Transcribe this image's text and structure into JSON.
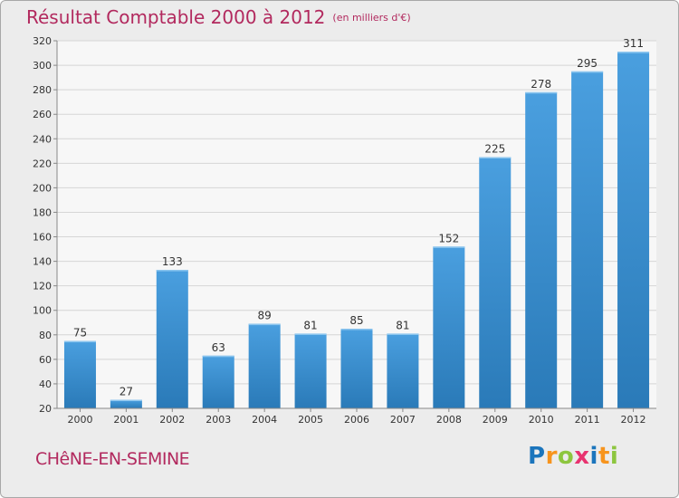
{
  "header": {
    "title": "Résultat Comptable 2000 à 2012",
    "subtitle": "(en milliers d'€)"
  },
  "footer": {
    "commune": "CHêNE-EN-SEMINE",
    "logo": {
      "letters": [
        "P",
        "r",
        "o",
        "x",
        "i",
        "t",
        "i"
      ],
      "colors": [
        "#1b75bc",
        "#f7941d",
        "#8dc63f",
        "#e8336f",
        "#1b75bc",
        "#f7941d",
        "#8dc63f"
      ]
    }
  },
  "chart_data": {
    "type": "bar",
    "categories": [
      "2000",
      "2001",
      "2002",
      "2003",
      "2004",
      "2005",
      "2006",
      "2007",
      "2008",
      "2009",
      "2010",
      "2011",
      "2012"
    ],
    "values": [
      75,
      27,
      133,
      63,
      89,
      81,
      85,
      81,
      152,
      225,
      278,
      295,
      311
    ],
    "title": "Résultat Comptable 2000 à 2012",
    "xlabel": "",
    "ylabel": "",
    "ylim": [
      20,
      320
    ],
    "yticks": [
      20,
      40,
      60,
      80,
      100,
      120,
      140,
      160,
      180,
      200,
      220,
      240,
      260,
      280,
      300,
      320
    ],
    "grid": true,
    "bar_color": "#4a9fdf",
    "bar_color_dark": "#2a7ab8"
  }
}
